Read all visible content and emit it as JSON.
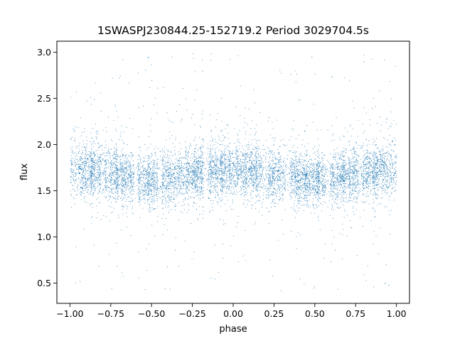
{
  "chart_data": {
    "type": "scatter",
    "title": "1SWASPJ230844.25-152719.2 Period 3029704.5s",
    "xlabel": "phase",
    "ylabel": "flux",
    "xlim": [
      -1.08,
      1.08
    ],
    "ylim": [
      0.28,
      3.12
    ],
    "xticks": [
      -1.0,
      -0.75,
      -0.5,
      -0.25,
      0.0,
      0.25,
      0.5,
      0.75,
      1.0
    ],
    "xtick_labels": [
      "−1.00",
      "−0.75",
      "−0.50",
      "−0.25",
      "0.00",
      "0.25",
      "0.50",
      "0.75",
      "1.00"
    ],
    "yticks": [
      0.5,
      1.0,
      1.5,
      2.0,
      2.5,
      3.0
    ],
    "ytick_labels": [
      "0.5",
      "1.0",
      "1.5",
      "2.0",
      "2.5",
      "3.0"
    ],
    "grid": false,
    "legend": "none",
    "marker_color": "#1f77b4",
    "distribution": {
      "phase_range": [
        -1.0,
        1.0
      ],
      "flux_median": 1.7,
      "flux_core_range": [
        1.4,
        2.0
      ],
      "flux_outlier_range": [
        0.4,
        3.0
      ],
      "points_per_unit_phase": 8000,
      "symmetric_about_phase_zero": true
    },
    "series": [
      {
        "points": [
          [
            -0.98,
            1.62
          ],
          [
            -0.92,
            1.71
          ],
          [
            -0.85,
            1.55
          ],
          [
            -0.78,
            1.8
          ],
          [
            -0.66,
            1.74
          ],
          [
            -0.55,
            1.68
          ],
          [
            -0.52,
            2.95
          ],
          [
            -0.5,
            2.7
          ],
          [
            -0.41,
            1.77
          ],
          [
            -0.3,
            1.6
          ],
          [
            -0.19,
            2.8
          ],
          [
            -0.1,
            1.72
          ],
          [
            0.0,
            1.66
          ],
          [
            0.08,
            1.58
          ],
          [
            0.18,
            1.74
          ],
          [
            0.3,
            1.69
          ],
          [
            0.42,
            1.81
          ],
          [
            0.48,
            2.95
          ],
          [
            0.55,
            1.63
          ],
          [
            0.66,
            1.76
          ],
          [
            0.8,
            2.9
          ],
          [
            0.85,
            1.7
          ],
          [
            0.97,
            1.65
          ],
          [
            -0.94,
            0.52
          ],
          [
            0.95,
            0.48
          ]
        ]
      }
    ]
  }
}
